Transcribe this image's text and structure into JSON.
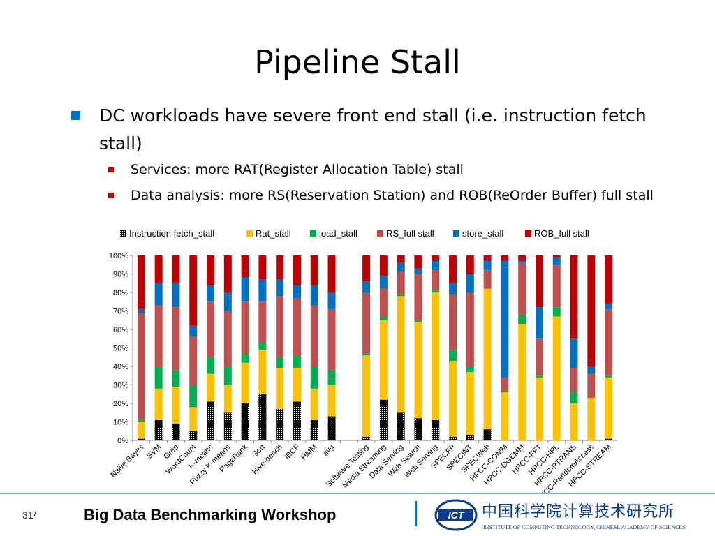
{
  "slide": {
    "title": "Pipeline Stall",
    "bullet1": "DC workloads have severe front end stall (i.e. instruction fetch stall)",
    "sub_bullets": [
      "Services: more RAT(Register Allocation Table) stall",
      "Data analysis: more RS(Reservation Station)  and ROB(ReOrder Buffer) full stall"
    ]
  },
  "footer": {
    "page_number": "31/",
    "title": "Big Data Benchmarking Workshop",
    "logo_text_cn": "中国科学院计算技术研究所",
    "logo_text_en": "INSTITUTE OF  COMPUTING TECHNOLOGY, CHINESE ACADEMY OF SCIENCES",
    "logo_mark": "ICT"
  },
  "chart_data": {
    "type": "bar",
    "stacked": true,
    "normalized": true,
    "legend_position": "top",
    "y_ticks": [
      "0%",
      "10%",
      "20%",
      "30%",
      "40%",
      "50%",
      "60%",
      "70%",
      "80%",
      "90%",
      "100%"
    ],
    "ylim": [
      0,
      100
    ],
    "categories": [
      "Naive Bayes",
      "SVM",
      "Grep",
      "WordCount",
      "K-means",
      "Fuzzy K-means",
      "PageRank",
      "Sort",
      "Hive-bench",
      "IBCF",
      "HMM",
      "avg",
      "",
      "Software Testing",
      "Media Streaming",
      "Data Serving",
      "Web Search",
      "Web Serving",
      "SPECFP",
      "SPECINT",
      "SPECWeb",
      "HPCC-COMM",
      "HPCC-DGEMM",
      "HPCC-FFT",
      "HPCC-HPL",
      "HPCC-PTRANS",
      "HPCC-RandomAccess",
      "HPCC-STREAM"
    ],
    "series": [
      {
        "name": "Instruction fetch_stall",
        "color": "#000000",
        "values": [
          1,
          11,
          9,
          5,
          21,
          15,
          20,
          25,
          17,
          21,
          11,
          13,
          null,
          2,
          22,
          15,
          12,
          11,
          2,
          3,
          6,
          0,
          0,
          0,
          0,
          0,
          0,
          1
        ]
      },
      {
        "name": "Rat_stall",
        "color": "#ffc000",
        "values": [
          9,
          17,
          20,
          13,
          15,
          15,
          22,
          24,
          22,
          18,
          17,
          17,
          null,
          44,
          43,
          63,
          52,
          69,
          41,
          34,
          76,
          26,
          63,
          34,
          67,
          20,
          23,
          33
        ]
      },
      {
        "name": "load_stall",
        "color": "#00b050",
        "values": [
          1,
          12,
          9,
          12,
          9,
          10,
          5,
          4,
          6,
          7,
          12,
          8,
          null,
          1,
          2,
          1,
          1,
          1,
          6,
          3,
          0,
          1,
          5,
          1,
          5,
          6,
          0,
          1
        ]
      },
      {
        "name": "RS_full stall",
        "color": "#c0504d",
        "values": [
          58,
          33,
          34,
          26,
          30,
          30,
          28,
          22,
          33,
          31,
          33,
          33,
          null,
          33,
          15,
          12,
          25,
          11,
          30,
          40,
          10,
          7,
          28,
          20,
          23,
          13,
          13,
          36
        ]
      },
      {
        "name": "store_stall",
        "color": "#0070c0",
        "values": [
          2,
          12,
          13,
          6,
          9,
          10,
          13,
          12,
          9,
          7,
          11,
          9,
          null,
          6,
          7,
          5,
          3,
          5,
          6,
          10,
          5,
          63,
          1,
          17,
          4,
          16,
          4,
          3
        ]
      },
      {
        "name": "ROB_full stall",
        "color": "#c00000",
        "values": [
          29,
          15,
          15,
          38,
          16,
          20,
          12,
          13,
          13,
          16,
          16,
          20,
          null,
          14,
          11,
          4,
          7,
          3,
          15,
          10,
          3,
          3,
          3,
          28,
          1,
          45,
          60,
          26
        ]
      }
    ]
  }
}
